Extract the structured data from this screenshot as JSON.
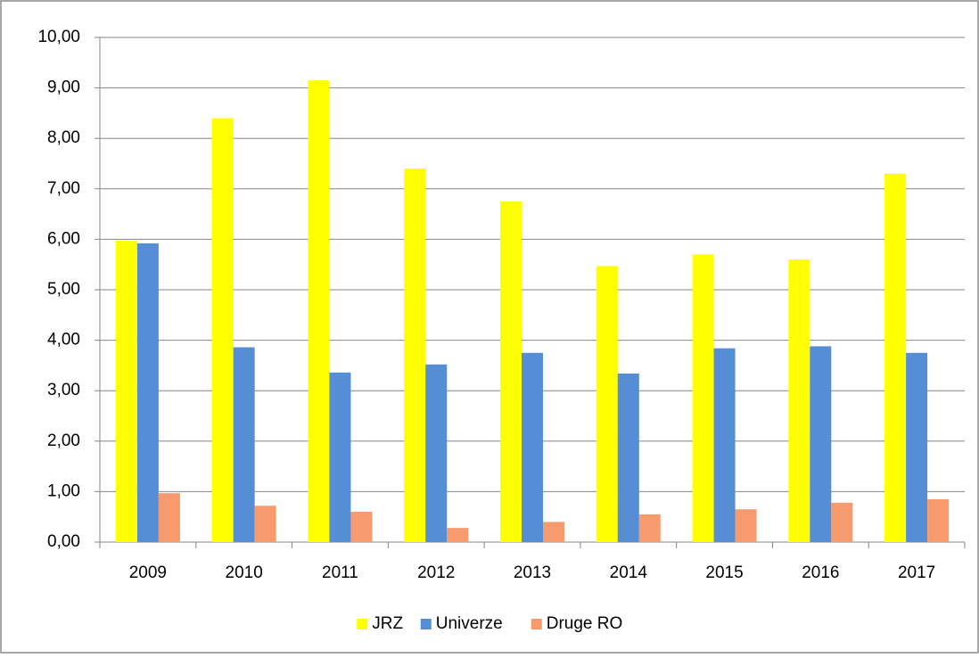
{
  "chart_data": {
    "type": "bar",
    "categories": [
      "2009",
      "2010",
      "2011",
      "2012",
      "2013",
      "2014",
      "2015",
      "2016",
      "2017"
    ],
    "series": [
      {
        "name": "JRZ",
        "color": "#ffff00",
        "values": [
          5.97,
          8.4,
          9.15,
          7.4,
          6.75,
          5.47,
          5.7,
          5.6,
          7.3
        ]
      },
      {
        "name": "Univerze",
        "color": "#558ed5",
        "values": [
          5.92,
          3.86,
          3.36,
          3.52,
          3.75,
          3.34,
          3.84,
          3.88,
          3.75
        ]
      },
      {
        "name": "Druge RO",
        "color": "#f79a6e",
        "values": [
          0.97,
          0.72,
          0.6,
          0.28,
          0.4,
          0.55,
          0.65,
          0.78,
          0.85
        ]
      }
    ],
    "ylim": [
      0,
      10
    ],
    "yticks": [
      {
        "value": 0,
        "label": "0,00"
      },
      {
        "value": 1,
        "label": "1,00"
      },
      {
        "value": 2,
        "label": "2,00"
      },
      {
        "value": 3,
        "label": "3,00"
      },
      {
        "value": 4,
        "label": "4,00"
      },
      {
        "value": 5,
        "label": "5,00"
      },
      {
        "value": 6,
        "label": "6,00"
      },
      {
        "value": 7,
        "label": "7,00"
      },
      {
        "value": 8,
        "label": "8,00"
      },
      {
        "value": 9,
        "label": "9,00"
      },
      {
        "value": 10,
        "label": "10,00"
      }
    ],
    "grid": true,
    "legend": "bottom"
  }
}
